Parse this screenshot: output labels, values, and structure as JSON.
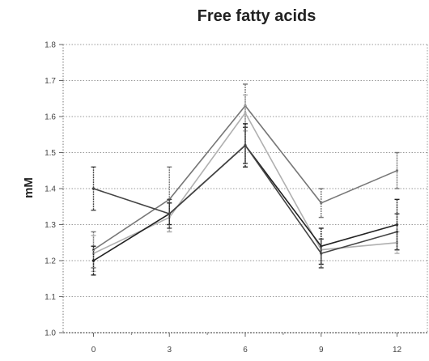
{
  "chart_data": {
    "type": "line",
    "title": "Free fatty acids",
    "xlabel": "",
    "ylabel": "mM",
    "x": [
      0,
      3,
      6,
      9,
      12
    ],
    "xtick_labels": [
      "0",
      "3",
      "6",
      "9",
      "12"
    ],
    "ylim": [
      1.0,
      1.8
    ],
    "yticks": [
      1.0,
      1.1,
      1.2,
      1.3,
      1.4,
      1.5,
      1.6,
      1.7,
      1.8
    ],
    "ytick_labels": [
      "1.0",
      "1.1",
      "1.2",
      "1.3",
      "1.4",
      "1.5",
      "1.6",
      "1.7",
      "1.8"
    ],
    "grid": true,
    "series": [
      {
        "color": "#777777",
        "values": [
          1.23,
          1.37,
          1.63,
          1.36,
          1.45
        ],
        "errors": [
          0.05,
          0.09,
          0.06,
          0.04,
          0.05
        ]
      },
      {
        "color": "#b0b0b0",
        "values": [
          1.22,
          1.32,
          1.61,
          1.23,
          1.25
        ],
        "errors": [
          0.05,
          0.04,
          0.05,
          0.03,
          0.03
        ]
      },
      {
        "color": "#222222",
        "values": [
          1.2,
          1.33,
          1.52,
          1.24,
          1.3
        ],
        "errors": [
          0.04,
          0.03,
          0.06,
          0.05,
          0.07
        ]
      },
      {
        "color": "#444444",
        "values": [
          1.4,
          1.33,
          1.52,
          1.22,
          1.28
        ],
        "errors": [
          0.06,
          0.04,
          0.05,
          0.04,
          0.05
        ]
      }
    ]
  }
}
